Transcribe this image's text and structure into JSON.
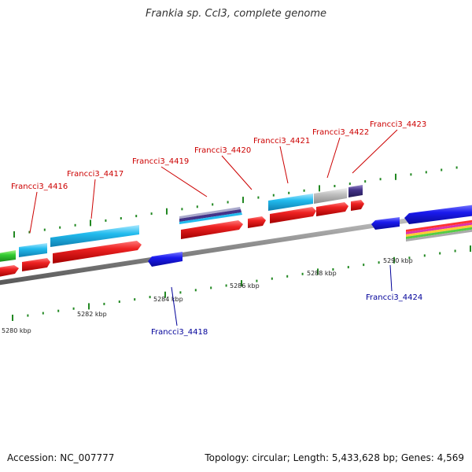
{
  "title": "Frankia sp. CcI3, complete genome",
  "footer": {
    "accession": "Accession: NC_007777",
    "stats": "Topology: circular; Length: 5,433,628 bp; Genes: 4,569"
  },
  "colors": {
    "forward_label": "#cc0000",
    "reverse_label": "#000099",
    "cds": "#e82020",
    "gene_cyan": "#22bbee",
    "gene_gray": "#bbbbbb",
    "gene_navy": "#443388",
    "reverse_cds": "#1a1aee",
    "tick": "#228822",
    "backbone": "#999999"
  },
  "genes": [
    {
      "id": "Francci3_4416",
      "strand": "forward"
    },
    {
      "id": "Francci3_4417",
      "strand": "forward"
    },
    {
      "id": "Francci3_4418",
      "strand": "reverse"
    },
    {
      "id": "Francci3_4419",
      "strand": "forward"
    },
    {
      "id": "Francci3_4420",
      "strand": "forward"
    },
    {
      "id": "Francci3_4421",
      "strand": "forward"
    },
    {
      "id": "Francci3_4422",
      "strand": "forward"
    },
    {
      "id": "Francci3_4423",
      "strand": "forward"
    },
    {
      "id": "Francci3_4424",
      "strand": "reverse"
    }
  ],
  "scale_labels": [
    "5280 kbp",
    "5282 kbp",
    "5284 kbp",
    "5286 kbp",
    "5288 kbp",
    "5290 kbp"
  ]
}
